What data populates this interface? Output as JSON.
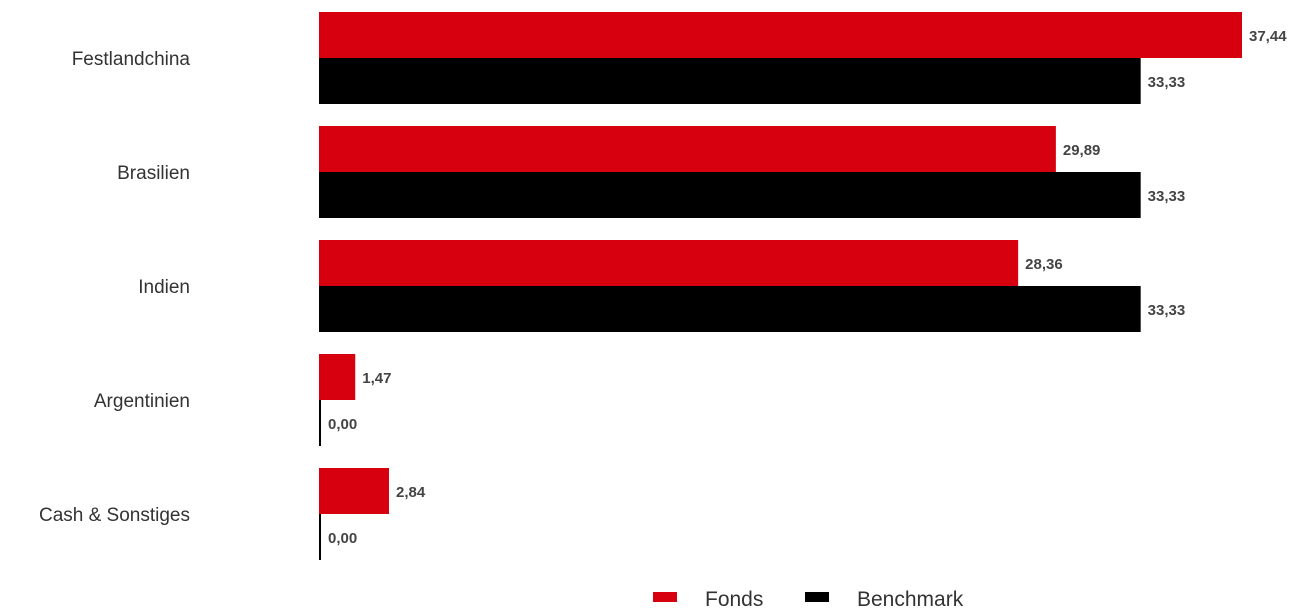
{
  "chart_data": {
    "type": "bar",
    "orientation": "horizontal",
    "categories": [
      "Festlandchina",
      "Brasilien",
      "Indien",
      "Argentinien",
      "Cash & Sonstiges"
    ],
    "series": [
      {
        "name": "Fonds",
        "color": "#d7000f",
        "values": [
          37.44,
          29.89,
          28.36,
          1.47,
          2.84
        ],
        "labels": [
          "37,44",
          "29,89",
          "28,36",
          "1,47",
          "2,84"
        ]
      },
      {
        "name": "Benchmark",
        "color": "#000000",
        "values": [
          33.33,
          33.33,
          33.33,
          0.0,
          0.0
        ],
        "labels": [
          "33,33",
          "33,33",
          "33,33",
          "0,00",
          "0,00"
        ]
      }
    ],
    "title": "",
    "xlabel": "",
    "ylabel": "",
    "xlim": [
      0,
      37.44
    ],
    "grid": false,
    "legend_placement": "bottom-center"
  }
}
